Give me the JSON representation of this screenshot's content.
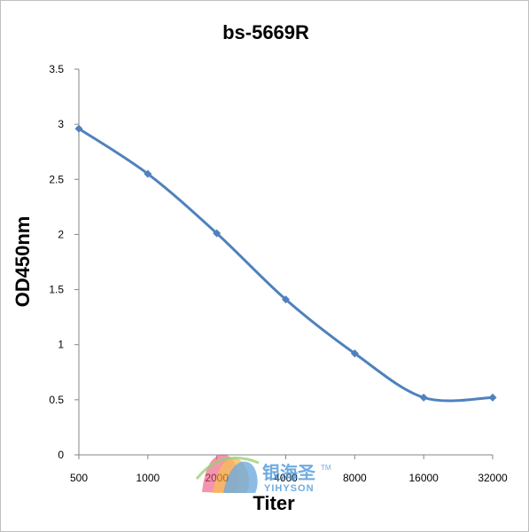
{
  "chart_data": {
    "type": "line",
    "title": "bs-5669R",
    "xlabel": "Titer",
    "ylabel": "OD450nm",
    "categories": [
      "500",
      "1000",
      "2000",
      "4000",
      "8000",
      "16000",
      "32000"
    ],
    "series": [
      {
        "values": [
          2.96,
          2.55,
          2.01,
          1.41,
          0.92,
          0.52,
          0.52
        ],
        "color": "#4f81bd"
      }
    ],
    "ylim": [
      0,
      3.5
    ],
    "yticks": [
      "0",
      "0.5",
      "1",
      "1.5",
      "2",
      "2.5",
      "3",
      "3.5"
    ],
    "grid": false,
    "legend": "none"
  },
  "watermark": {
    "chinese": "银海圣",
    "english": "YIHYSON",
    "tm": "TM"
  }
}
